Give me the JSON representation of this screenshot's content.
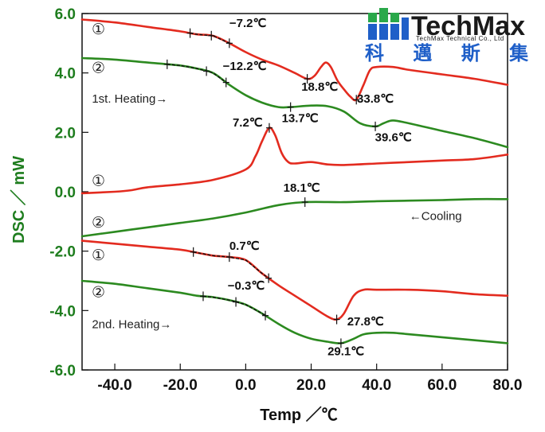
{
  "chart_data": {
    "type": "line",
    "xlabel": "Temp ／℃",
    "ylabel": "DSC ／ mW",
    "xlim": [
      -50,
      80
    ],
    "ylim": [
      -6,
      6
    ],
    "xticks": [
      "-40.0",
      "-20.0",
      "0.0",
      "20.0",
      "40.0",
      "60.0",
      "80.0"
    ],
    "yticks": [
      "-6.0",
      "-4.0",
      "-2.0",
      "0.0",
      "2.0",
      "4.0",
      "6.0"
    ],
    "colors": {
      "red": "#e32b1f",
      "green": "#2c8a20"
    },
    "series": [
      {
        "color": "red",
        "group": "1st. Heating",
        "marker": "①",
        "x": [
          -50,
          -40,
          -30,
          -20,
          -15,
          -10,
          -5,
          0,
          5,
          10,
          15,
          18.8,
          21,
          23,
          24.5,
          26,
          28,
          30,
          32,
          33.8,
          36,
          38,
          40,
          45,
          50,
          60,
          70,
          80
        ],
        "y": [
          5.8,
          5.7,
          5.55,
          5.4,
          5.3,
          5.25,
          5.0,
          4.7,
          4.45,
          4.25,
          4.0,
          3.8,
          3.9,
          4.2,
          4.35,
          4.2,
          3.75,
          3.45,
          3.2,
          3.1,
          3.6,
          4.1,
          4.2,
          4.2,
          4.1,
          3.95,
          3.8,
          3.6
        ]
      },
      {
        "color": "green",
        "group": "1st. Heating",
        "marker": "②",
        "x": [
          -50,
          -40,
          -30,
          -20,
          -15,
          -10,
          -5,
          0,
          5,
          10,
          13.7,
          20,
          25,
          30,
          35,
          39.6,
          42,
          45,
          50,
          60,
          70,
          80
        ],
        "y": [
          4.5,
          4.45,
          4.35,
          4.25,
          4.15,
          4.0,
          3.6,
          3.25,
          3.0,
          2.85,
          2.85,
          2.9,
          2.88,
          2.7,
          2.3,
          2.2,
          2.3,
          2.4,
          2.3,
          2.05,
          1.8,
          1.5
        ]
      },
      {
        "color": "red",
        "group": "Cooling",
        "marker": "①",
        "x": [
          -50,
          -40,
          -35,
          -30,
          -20,
          -10,
          0,
          3,
          5,
          7.2,
          9,
          11,
          13,
          15,
          20,
          25,
          30,
          40,
          50,
          60,
          70,
          80
        ],
        "y": [
          -0.05,
          0.0,
          0.05,
          0.15,
          0.25,
          0.4,
          0.75,
          1.2,
          1.7,
          2.15,
          1.9,
          1.3,
          1.0,
          0.95,
          1.0,
          0.92,
          0.9,
          0.95,
          1.0,
          1.05,
          1.1,
          1.25
        ]
      },
      {
        "color": "green",
        "group": "Cooling",
        "marker": "②",
        "x": [
          -50,
          -40,
          -30,
          -20,
          -10,
          0,
          10,
          18.1,
          30,
          40,
          50,
          60,
          70,
          80
        ],
        "y": [
          -1.5,
          -1.35,
          -1.2,
          -1.05,
          -0.9,
          -0.7,
          -0.45,
          -0.35,
          -0.35,
          -0.32,
          -0.3,
          -0.28,
          -0.25,
          -0.25
        ]
      },
      {
        "color": "red",
        "group": "2nd. Heating",
        "marker": "①",
        "x": [
          -50,
          -40,
          -30,
          -20,
          -15,
          -10,
          -5,
          0,
          5,
          10,
          15,
          20,
          25,
          27.8,
          30,
          33,
          36,
          40,
          50,
          60,
          70,
          80
        ],
        "y": [
          -1.65,
          -1.75,
          -1.85,
          -1.95,
          -2.05,
          -2.15,
          -2.2,
          -2.3,
          -2.75,
          -3.15,
          -3.5,
          -3.85,
          -4.2,
          -4.3,
          -4.1,
          -3.5,
          -3.3,
          -3.3,
          -3.3,
          -3.35,
          -3.45,
          -3.5
        ]
      },
      {
        "color": "green",
        "group": "2nd. Heating",
        "marker": "②",
        "x": [
          -50,
          -40,
          -30,
          -20,
          -15,
          -10,
          -5,
          0,
          5,
          10,
          15,
          20,
          25,
          29.1,
          33,
          36,
          40,
          45,
          50,
          60,
          70,
          80
        ],
        "y": [
          -3.0,
          -3.1,
          -3.25,
          -3.4,
          -3.5,
          -3.55,
          -3.65,
          -3.8,
          -4.1,
          -4.45,
          -4.75,
          -4.95,
          -5.05,
          -5.1,
          -4.95,
          -4.8,
          -4.75,
          -4.75,
          -4.8,
          -4.9,
          -5.0,
          -5.1
        ]
      }
    ],
    "annotations": [
      {
        "text": "−7.2℃",
        "x": -5,
        "y": 5.55
      },
      {
        "text": "18.8℃",
        "x": 17,
        "y": 3.4
      },
      {
        "text": "33.8℃",
        "x": 34,
        "y": 3.0
      },
      {
        "text": "−12.2℃",
        "x": -7,
        "y": 4.1
      },
      {
        "text": "13.7℃",
        "x": 11,
        "y": 2.35
      },
      {
        "text": "39.6℃",
        "x": 39.5,
        "y": 1.7
      },
      {
        "text": "7.2℃",
        "x": -4,
        "y": 2.2
      },
      {
        "text": "18.1℃",
        "x": 11.5,
        "y": 0.0
      },
      {
        "text": "0.7℃",
        "x": -5,
        "y": -1.95
      },
      {
        "text": "−0.3℃",
        "x": -5.5,
        "y": -3.3
      },
      {
        "text": "27.8℃",
        "x": 31,
        "y": -4.5
      },
      {
        "text": "29.1℃",
        "x": 25,
        "y": -5.5
      }
    ],
    "markers": [
      {
        "text": "①",
        "x": -45,
        "y": 5.3
      },
      {
        "text": "②",
        "x": -45,
        "y": 4.0
      },
      {
        "text": "①",
        "x": -45,
        "y": 0.2
      },
      {
        "text": "②",
        "x": -45,
        "y": -1.2
      },
      {
        "text": "①",
        "x": -45,
        "y": -2.3
      },
      {
        "text": "②",
        "x": -45,
        "y": -3.55
      }
    ],
    "section_labels": [
      {
        "text": "1st. Heating→",
        "x": -47,
        "y": 3.0
      },
      {
        "text": "←Cooling",
        "x": 50,
        "y": -0.95
      },
      {
        "text": "2nd. Heating→",
        "x": -47,
        "y": -4.6
      }
    ],
    "onset_marks": [
      {
        "series": 0,
        "x": [
          -17,
          -10.5,
          -5
        ]
      },
      {
        "series": 1,
        "x": [
          -24,
          -12,
          -6
        ]
      },
      {
        "series": 4,
        "x": [
          -16,
          -5,
          7
        ]
      },
      {
        "series": 5,
        "x": [
          -13,
          -3,
          6
        ]
      },
      {
        "series": 0,
        "x": [
          18.8,
          33.8
        ]
      },
      {
        "series": 1,
        "x": [
          13.7,
          39.6
        ]
      },
      {
        "series": 2,
        "x": [
          7.2
        ]
      },
      {
        "series": 3,
        "x": [
          18.1
        ]
      },
      {
        "series": 4,
        "x": [
          27.8
        ]
      },
      {
        "series": 5,
        "x": [
          29.1
        ]
      }
    ]
  },
  "logo": {
    "name": "TechMax",
    "subtitle": "TechMax Technical Co., Ltd",
    "chinese": "科 邁 斯 集 團"
  }
}
